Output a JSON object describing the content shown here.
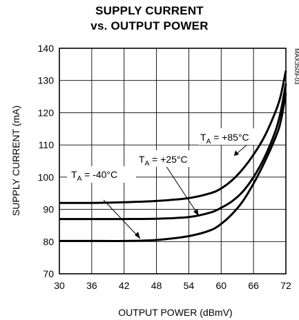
{
  "chart_data": {
    "type": "line",
    "title_line1": "SUPPLY CURRENT",
    "title_line2": "vs. OUTPUT POWER",
    "xlabel": "OUTPUT POWER (dBmV)",
    "ylabel": "SUPPLY CURRENT (mA)",
    "xlim": [
      30,
      72
    ],
    "ylim": [
      70,
      140
    ],
    "xticks": [
      30,
      36,
      42,
      48,
      54,
      60,
      66,
      72
    ],
    "yticks": [
      70,
      80,
      90,
      100,
      110,
      120,
      130,
      140
    ],
    "grid": true,
    "figure_code": "MAX3509-03",
    "series": [
      {
        "name": "TA = +85°C",
        "label_main": "T",
        "label_sub": "A",
        "label_rest": " = +85°C",
        "x": [
          30,
          36,
          42,
          48,
          54,
          58,
          60,
          62,
          64,
          66,
          68,
          70,
          71,
          72
        ],
        "y": [
          92,
          92,
          92.2,
          92.6,
          93.5,
          95,
          96.5,
          99,
          102.5,
          107,
          112.5,
          120,
          125,
          133
        ]
      },
      {
        "name": "TA = +25°C",
        "label_main": "T",
        "label_sub": "A",
        "label_rest": " = +25°C",
        "x": [
          30,
          36,
          42,
          48,
          54,
          58,
          60,
          62,
          64,
          66,
          68,
          70,
          71,
          72
        ],
        "y": [
          87,
          87,
          87,
          87.1,
          87.6,
          89,
          90.5,
          92.5,
          95.5,
          100,
          106,
          114,
          120,
          129
        ]
      },
      {
        "name": "TA = -40°C",
        "label_main": "T",
        "label_sub": "A",
        "label_rest": " = -40°C",
        "x": [
          30,
          36,
          42,
          48,
          54,
          58,
          60,
          62,
          64,
          66,
          68,
          70,
          71,
          72
        ],
        "y": [
          80.2,
          80.2,
          80.2,
          80.5,
          81.7,
          83.5,
          85.5,
          88.5,
          92.5,
          98,
          104.5,
          112,
          117,
          126
        ]
      }
    ]
  }
}
